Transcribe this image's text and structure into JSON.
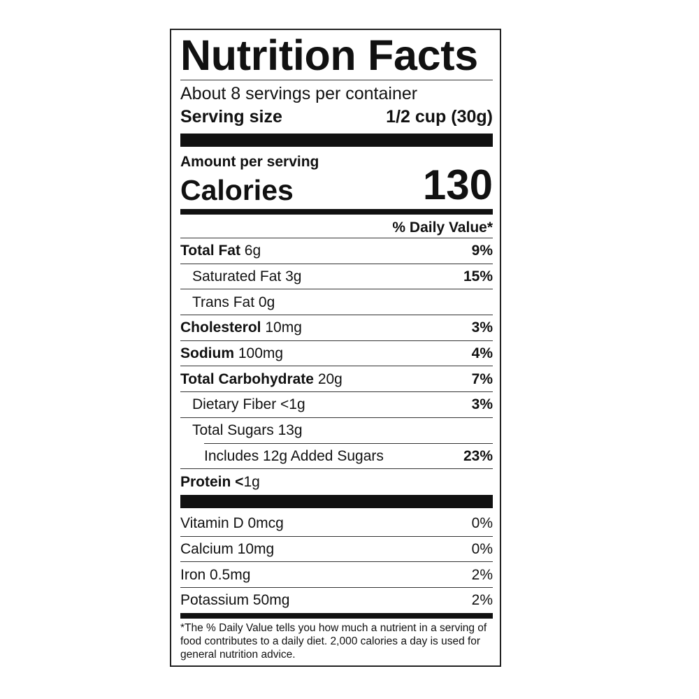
{
  "title": "Nutrition Facts",
  "servings_per_container": "About 8 servings per container",
  "serving_size": {
    "label": "Serving size",
    "value": "1/2 cup (30g)"
  },
  "amount_per_serving": "Amount per serving",
  "calories": {
    "label": "Calories",
    "value": "130"
  },
  "daily_value_header": "% Daily Value*",
  "nutrients": [
    {
      "name": "Total Fat",
      "amount": "6g",
      "dv": "9%"
    },
    {
      "name": "Saturated Fat 3g",
      "dv": "15%"
    },
    {
      "name": "Trans Fat 0g",
      "dv": ""
    },
    {
      "name": "Cholesterol",
      "amount": "10mg",
      "dv": "3%"
    },
    {
      "name": "Sodium",
      "amount": "100mg",
      "dv": "4%"
    },
    {
      "name": "Total Carbohydrate",
      "amount": "20g",
      "dv": "7%"
    },
    {
      "name": "Dietary Fiber <1g",
      "dv": "3%"
    },
    {
      "name": "Total Sugars 13g",
      "dv": ""
    },
    {
      "name": "Includes 12g Added Sugars",
      "dv": "23%"
    },
    {
      "name": "Protein <",
      "amount": "1g",
      "dv": ""
    }
  ],
  "vitamins": [
    {
      "name": "Vitamin D 0mcg",
      "dv": "0%"
    },
    {
      "name": "Calcium 10mg",
      "dv": "0%"
    },
    {
      "name": "Iron 0.5mg",
      "dv": "2%"
    },
    {
      "name": "Potassium 50mg",
      "dv": "2%"
    }
  ],
  "footnote": "*The % Daily Value tells you how much a nutrient in a serving of food contributes to a daily diet. 2,000 calories a day is used for general nutrition advice."
}
